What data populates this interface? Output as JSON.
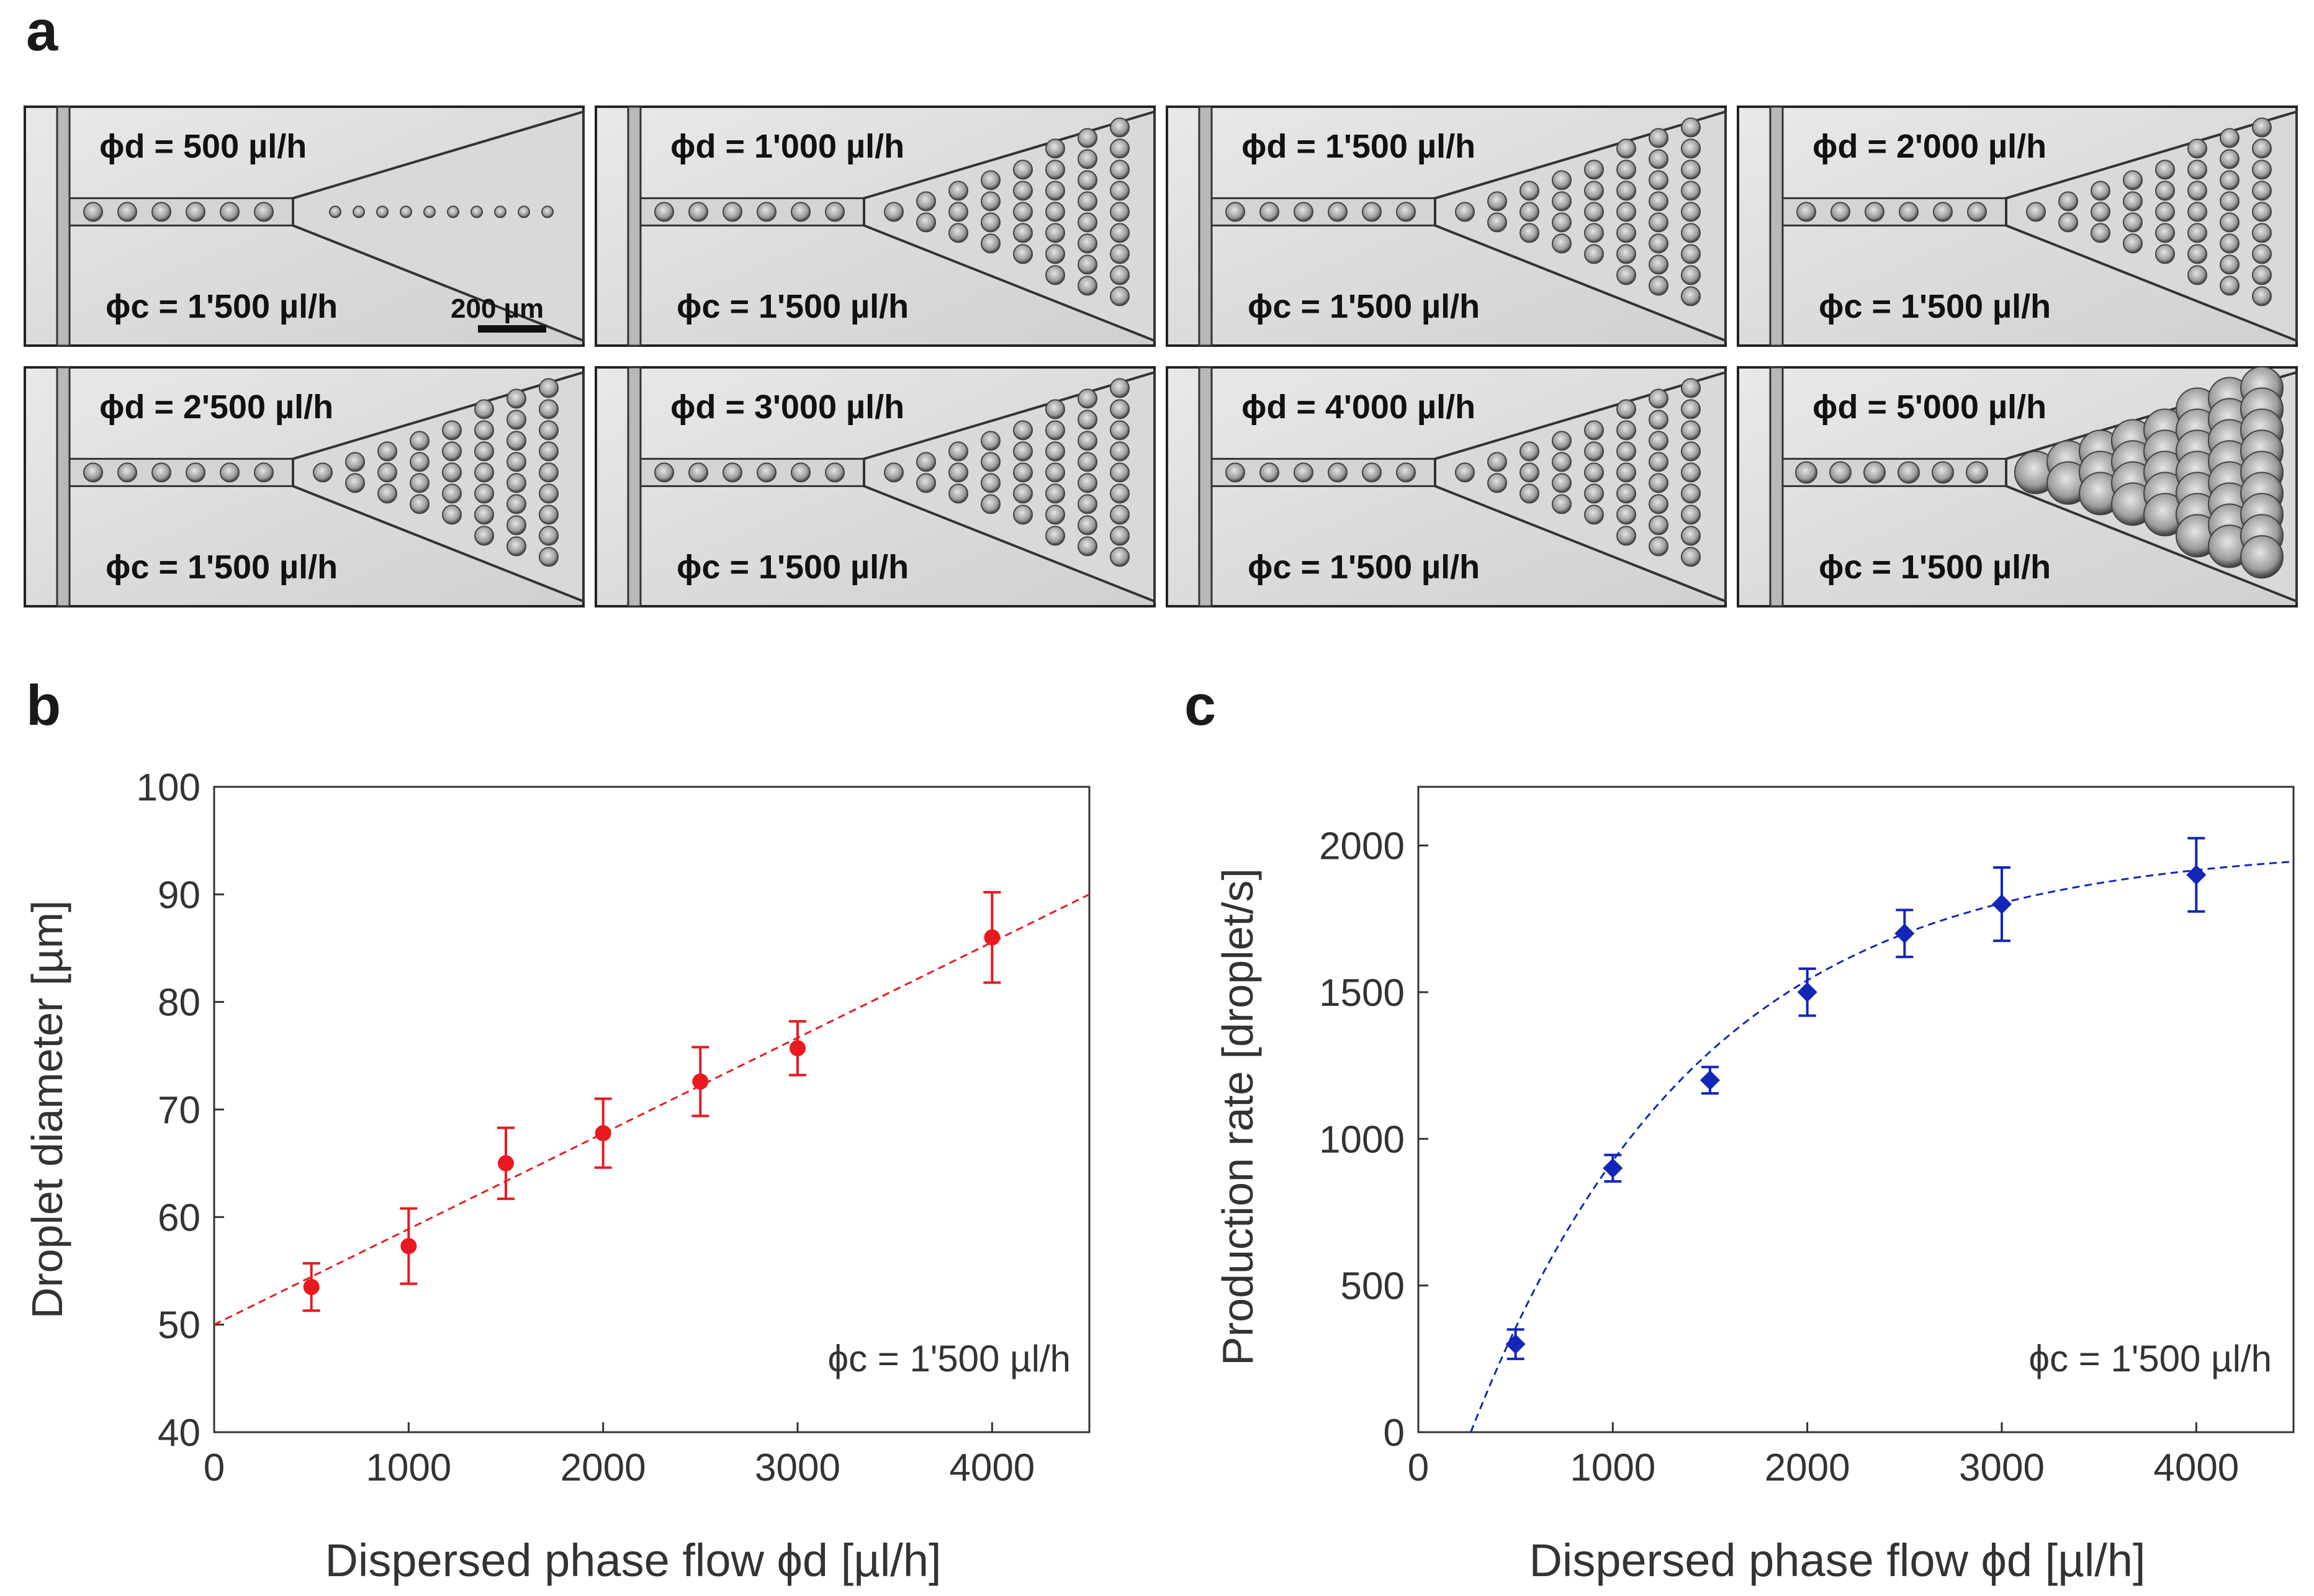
{
  "panels": {
    "a_label": "a",
    "b_label": "b",
    "c_label": "c"
  },
  "micrographs": [
    {
      "dispersed": "ϕd = 500 µl/h",
      "continuous": "ϕc = 1'500 µl/h",
      "scalebar": "200 µm"
    },
    {
      "dispersed": "ϕd = 1'000 µl/h",
      "continuous": "ϕc = 1'500 µl/h"
    },
    {
      "dispersed": "ϕd = 1'500 µl/h",
      "continuous": "ϕc = 1'500 µl/h"
    },
    {
      "dispersed": "ϕd = 2'000 µl/h",
      "continuous": "ϕc = 1'500 µl/h"
    },
    {
      "dispersed": "ϕd = 2'500 µl/h",
      "continuous": "ϕc = 1'500 µl/h"
    },
    {
      "dispersed": "ϕd = 3'000 µl/h",
      "continuous": "ϕc = 1'500 µl/h"
    },
    {
      "dispersed": "ϕd = 4'000 µl/h",
      "continuous": "ϕc = 1'500 µl/h"
    },
    {
      "dispersed": "ϕd = 5'000 µl/h",
      "continuous": "ϕc = 1'500 µl/h"
    }
  ],
  "chart_data": [
    {
      "type": "scatter",
      "title": "",
      "xlabel": "Dispersed phase flow ϕd [µl/h]",
      "ylabel": "Droplet diameter [µm]",
      "xlim": [
        0,
        4500
      ],
      "ylim": [
        40,
        100
      ],
      "xticks": [
        0,
        1000,
        2000,
        3000,
        4000
      ],
      "yticks": [
        40,
        50,
        60,
        70,
        80,
        90,
        100
      ],
      "annotation": "ϕc = 1'500 µl/h",
      "color": "#e8191f",
      "series": [
        {
          "name": "measured",
          "x": [
            500,
            1000,
            1500,
            2000,
            2500,
            3000,
            4000
          ],
          "y": [
            53.5,
            57.3,
            65.0,
            67.8,
            72.6,
            75.7,
            86.0
          ],
          "err": [
            2.2,
            3.5,
            3.3,
            3.2,
            3.2,
            2.5,
            4.2
          ]
        },
        {
          "name": "linear fit",
          "x": [
            0,
            4500
          ],
          "y": [
            50.0,
            90.0
          ]
        }
      ]
    },
    {
      "type": "scatter",
      "title": "",
      "xlabel": "Dispersed phase flow ϕd [µl/h]",
      "ylabel": "Production rate [droplet/s]",
      "xlim": [
        0,
        4500
      ],
      "ylim": [
        0,
        2200
      ],
      "xticks": [
        0,
        1000,
        2000,
        3000,
        4000
      ],
      "yticks": [
        0,
        500,
        1000,
        1500,
        2000
      ],
      "annotation": "ϕc = 1'500 µl/h",
      "color": "#1326b8",
      "series": [
        {
          "name": "measured",
          "x": [
            500,
            1000,
            1500,
            2000,
            2500,
            3000,
            4000
          ],
          "y": [
            300,
            900,
            1200,
            1500,
            1700,
            1800,
            1900
          ],
          "err": [
            50,
            45,
            45,
            80,
            80,
            125,
            125
          ]
        },
        {
          "name": "exponential fit",
          "x0": 270,
          "ymax": 2000,
          "k": 0.00085
        }
      ]
    }
  ]
}
